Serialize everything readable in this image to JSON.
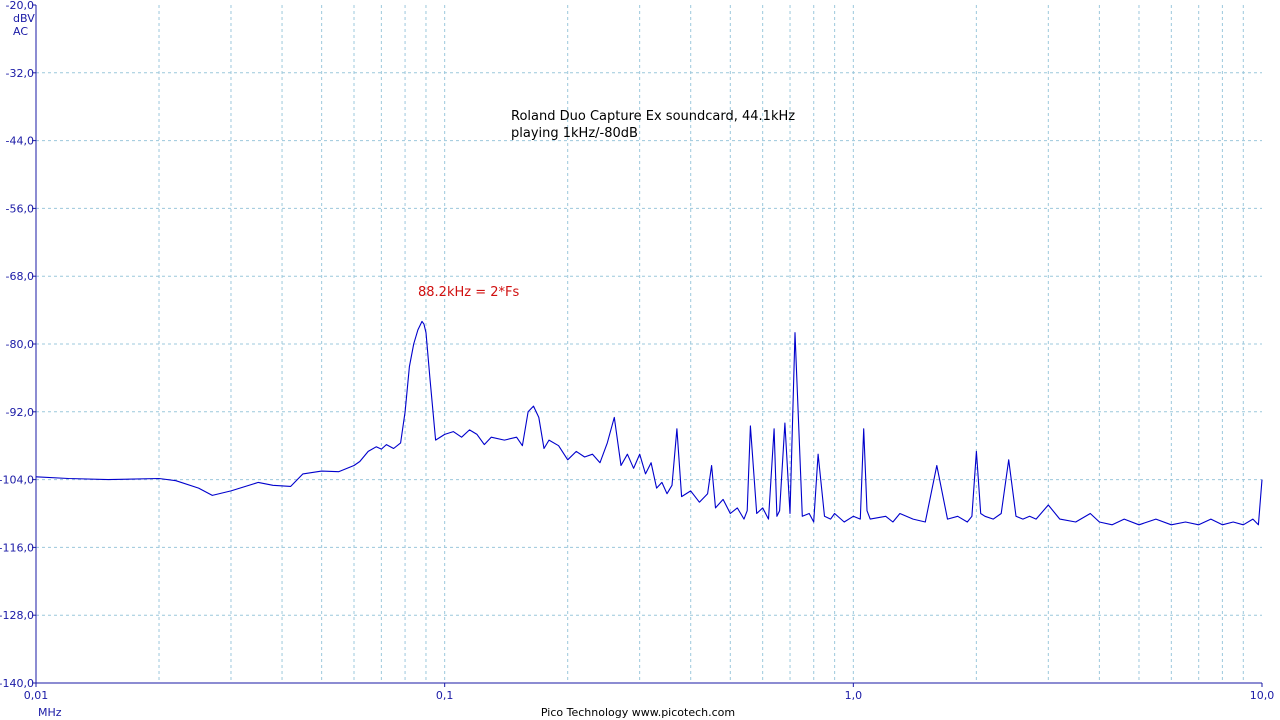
{
  "chart_data": {
    "type": "line",
    "title_lines": [
      "Roland Duo Capture Ex soundcard, 44.1kHz",
      "playing 1kHz/-80dB"
    ],
    "annotation": {
      "text": "88.2kHz = 2*Fs",
      "x": 0.0882,
      "y": -76.5
    },
    "y_unit_lines": [
      "dBV",
      "AC"
    ],
    "x_unit": "MHz",
    "footer": "Pico Technology   www.picotech.com",
    "xscale": "log",
    "xlim": [
      0.01,
      10.0
    ],
    "ylim": [
      -140,
      -20
    ],
    "grid": true,
    "legend": "none",
    "y_ticks": [
      "-20,0",
      "-32,0",
      "-44,0",
      "-56,0",
      "-68,0",
      "-80,0",
      "-92,0",
      "-104,0",
      "-116,0",
      "-128,0",
      "-140,0"
    ],
    "x_ticks": [
      {
        "value": 0.01,
        "label": "0,01"
      },
      {
        "value": 0.1,
        "label": "0,1"
      },
      {
        "value": 1.0,
        "label": "1,0"
      },
      {
        "value": 10.0,
        "label": "10,0"
      }
    ],
    "series": [
      {
        "color": "#0000cc",
        "x": [
          0.01,
          0.012,
          0.015,
          0.02,
          0.022,
          0.025,
          0.027,
          0.03,
          0.035,
          0.038,
          0.042,
          0.045,
          0.05,
          0.055,
          0.06,
          0.062,
          0.065,
          0.068,
          0.07,
          0.072,
          0.075,
          0.078,
          0.08,
          0.082,
          0.084,
          0.086,
          0.088,
          0.089,
          0.09,
          0.092,
          0.095,
          0.1,
          0.105,
          0.11,
          0.115,
          0.12,
          0.125,
          0.13,
          0.14,
          0.15,
          0.155,
          0.16,
          0.165,
          0.17,
          0.175,
          0.18,
          0.19,
          0.2,
          0.21,
          0.22,
          0.23,
          0.24,
          0.25,
          0.26,
          0.27,
          0.28,
          0.29,
          0.3,
          0.31,
          0.32,
          0.33,
          0.34,
          0.35,
          0.36,
          0.37,
          0.38,
          0.4,
          0.42,
          0.44,
          0.45,
          0.46,
          0.48,
          0.5,
          0.52,
          0.54,
          0.55,
          0.56,
          0.58,
          0.6,
          0.62,
          0.64,
          0.65,
          0.66,
          0.68,
          0.7,
          0.72,
          0.75,
          0.78,
          0.8,
          0.82,
          0.85,
          0.88,
          0.9,
          0.95,
          1.0,
          1.04,
          1.06,
          1.08,
          1.1,
          1.2,
          1.25,
          1.3,
          1.4,
          1.5,
          1.6,
          1.7,
          1.8,
          1.9,
          1.95,
          2.0,
          2.05,
          2.1,
          2.2,
          2.3,
          2.4,
          2.5,
          2.6,
          2.7,
          2.8,
          3.0,
          3.2,
          3.5,
          3.8,
          4.0,
          4.3,
          4.6,
          5.0,
          5.5,
          6.0,
          6.5,
          7.0,
          7.5,
          8.0,
          8.5,
          9.0,
          9.5,
          9.8,
          10.0
        ],
        "y": [
          -103.5,
          -103.8,
          -104.0,
          -103.8,
          -104.2,
          -105.5,
          -106.8,
          -106.0,
          -104.5,
          -105.0,
          -105.2,
          -103.0,
          -102.5,
          -102.6,
          -101.5,
          -100.8,
          -99.0,
          -98.2,
          -98.6,
          -97.8,
          -98.5,
          -97.5,
          -92.0,
          -84.0,
          -80.0,
          -77.5,
          -76.0,
          -76.5,
          -78.0,
          -86.0,
          -97.0,
          -96.0,
          -95.5,
          -96.5,
          -95.2,
          -96.0,
          -97.8,
          -96.5,
          -97.0,
          -96.5,
          -98.0,
          -92.0,
          -91.0,
          -93.0,
          -98.5,
          -97.0,
          -98.0,
          -100.5,
          -99.0,
          -100.0,
          -99.5,
          -101.0,
          -97.5,
          -93.0,
          -101.5,
          -99.5,
          -102.0,
          -99.5,
          -103.0,
          -101.0,
          -105.5,
          -104.5,
          -106.5,
          -105.0,
          -95.0,
          -107.0,
          -106.0,
          -108.0,
          -106.5,
          -101.5,
          -109.0,
          -107.5,
          -110.0,
          -109.0,
          -111.0,
          -109.5,
          -94.5,
          -110.0,
          -109.0,
          -111.0,
          -95.0,
          -110.5,
          -109.5,
          -94.0,
          -110.0,
          -78.0,
          -110.5,
          -110.0,
          -111.5,
          -99.5,
          -110.5,
          -111.0,
          -110.0,
          -111.5,
          -110.5,
          -111.0,
          -95.0,
          -109.5,
          -111.0,
          -110.5,
          -111.5,
          -110.0,
          -111.0,
          -111.5,
          -101.5,
          -111.0,
          -110.5,
          -111.5,
          -110.5,
          -99.0,
          -110.0,
          -110.5,
          -111.0,
          -110.0,
          -100.5,
          -110.5,
          -111.0,
          -110.5,
          -111.0,
          -108.5,
          -111.0,
          -111.5,
          -110.0,
          -111.5,
          -112.0,
          -111.0,
          -112.0,
          -111.0,
          -112.0,
          -111.5,
          -112.0,
          -111.0,
          -112.0,
          -111.5,
          -112.0,
          -111.0,
          -112.0,
          -104.0
        ]
      }
    ]
  }
}
